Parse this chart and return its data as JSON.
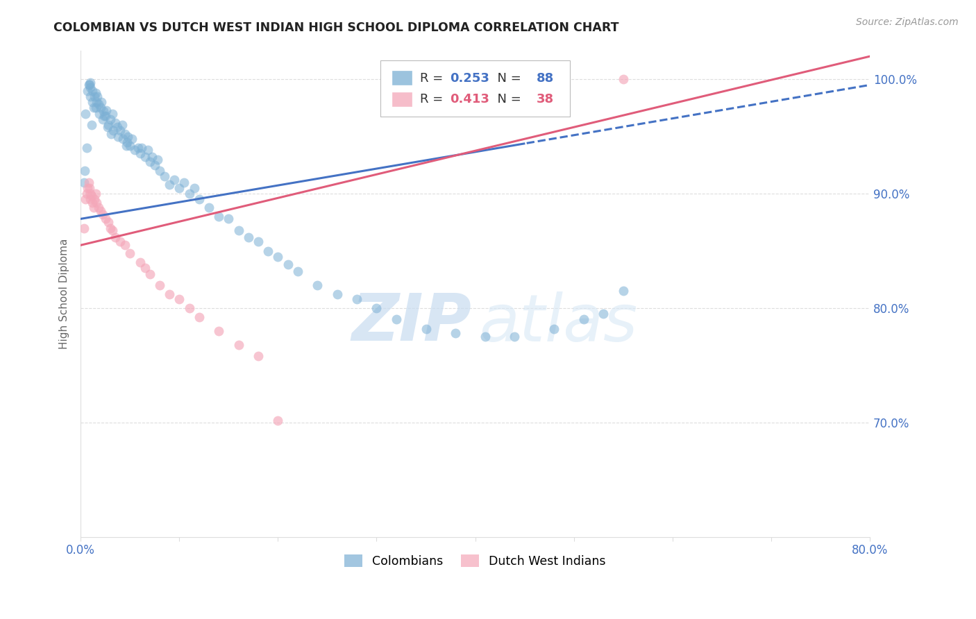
{
  "title": "COLOMBIAN VS DUTCH WEST INDIAN HIGH SCHOOL DIPLOMA CORRELATION CHART",
  "source": "Source: ZipAtlas.com",
  "ylabel": "High School Diploma",
  "r_colombian": 0.253,
  "n_colombian": 88,
  "r_dutch": 0.413,
  "n_dutch": 38,
  "blue_color": "#7BAFD4",
  "pink_color": "#F4A7B9",
  "blue_line_color": "#4472C4",
  "pink_line_color": "#E05C7A",
  "axis_color": "#4472C4",
  "grid_color": "#DDDDDD",
  "watermark_zip": "ZIP",
  "watermark_atlas": "atlas",
  "xlim": [
    0.0,
    0.8
  ],
  "ylim": [
    0.6,
    1.025
  ],
  "yticks": [
    0.7,
    0.8,
    0.9,
    1.0
  ],
  "ytick_labels": [
    "70.0%",
    "80.0%",
    "90.0%",
    "100.0%"
  ],
  "xticks": [
    0.0,
    0.1,
    0.2,
    0.3,
    0.4,
    0.5,
    0.6,
    0.7,
    0.8
  ],
  "xtick_labels": [
    "0.0%",
    "",
    "",
    "",
    "",
    "",
    "",
    "",
    "80.0%"
  ],
  "blue_x": [
    0.005,
    0.007,
    0.008,
    0.009,
    0.01,
    0.01,
    0.01,
    0.012,
    0.012,
    0.013,
    0.014,
    0.015,
    0.015,
    0.016,
    0.017,
    0.018,
    0.019,
    0.02,
    0.021,
    0.022,
    0.023,
    0.025,
    0.026,
    0.028,
    0.03,
    0.032,
    0.033,
    0.035,
    0.037,
    0.038,
    0.04,
    0.042,
    0.043,
    0.045,
    0.047,
    0.048,
    0.05,
    0.052,
    0.055,
    0.058,
    0.06,
    0.062,
    0.065,
    0.068,
    0.07,
    0.072,
    0.075,
    0.078,
    0.08,
    0.085,
    0.09,
    0.095,
    0.1,
    0.105,
    0.11,
    0.115,
    0.12,
    0.13,
    0.14,
    0.15,
    0.16,
    0.17,
    0.18,
    0.19,
    0.2,
    0.21,
    0.22,
    0.24,
    0.26,
    0.28,
    0.3,
    0.32,
    0.35,
    0.38,
    0.41,
    0.44,
    0.48,
    0.51,
    0.53,
    0.55,
    0.003,
    0.004,
    0.006,
    0.011,
    0.024,
    0.027,
    0.031,
    0.046
  ],
  "blue_y": [
    0.97,
    0.99,
    0.995,
    0.995,
    0.997,
    0.993,
    0.985,
    0.99,
    0.98,
    0.975,
    0.985,
    0.988,
    0.975,
    0.98,
    0.985,
    0.978,
    0.97,
    0.975,
    0.98,
    0.965,
    0.972,
    0.968,
    0.973,
    0.96,
    0.965,
    0.97,
    0.955,
    0.962,
    0.958,
    0.95,
    0.955,
    0.96,
    0.948,
    0.952,
    0.945,
    0.95,
    0.942,
    0.948,
    0.938,
    0.94,
    0.935,
    0.94,
    0.932,
    0.938,
    0.928,
    0.932,
    0.925,
    0.93,
    0.92,
    0.915,
    0.908,
    0.912,
    0.905,
    0.91,
    0.9,
    0.905,
    0.895,
    0.888,
    0.88,
    0.878,
    0.868,
    0.862,
    0.858,
    0.85,
    0.845,
    0.838,
    0.832,
    0.82,
    0.812,
    0.808,
    0.8,
    0.79,
    0.782,
    0.778,
    0.775,
    0.775,
    0.782,
    0.79,
    0.795,
    0.815,
    0.91,
    0.92,
    0.94,
    0.96,
    0.968,
    0.958,
    0.952,
    0.942
  ],
  "pink_x": [
    0.003,
    0.005,
    0.006,
    0.007,
    0.008,
    0.009,
    0.01,
    0.01,
    0.011,
    0.012,
    0.013,
    0.014,
    0.015,
    0.016,
    0.018,
    0.02,
    0.022,
    0.025,
    0.028,
    0.03,
    0.032,
    0.035,
    0.04,
    0.045,
    0.05,
    0.06,
    0.065,
    0.07,
    0.08,
    0.09,
    0.1,
    0.11,
    0.12,
    0.14,
    0.16,
    0.18,
    0.2,
    0.55
  ],
  "pink_y": [
    0.87,
    0.895,
    0.9,
    0.905,
    0.91,
    0.905,
    0.9,
    0.895,
    0.898,
    0.892,
    0.888,
    0.895,
    0.9,
    0.892,
    0.888,
    0.885,
    0.882,
    0.878,
    0.875,
    0.87,
    0.868,
    0.862,
    0.858,
    0.855,
    0.848,
    0.84,
    0.835,
    0.83,
    0.82,
    0.812,
    0.808,
    0.8,
    0.792,
    0.78,
    0.768,
    0.758,
    0.702,
    1.0
  ],
  "blue_line_start_x": 0.0,
  "blue_line_end_x": 0.8,
  "blue_line_dash_start": 0.45,
  "pink_line_start_x": 0.0,
  "pink_line_end_x": 0.8
}
